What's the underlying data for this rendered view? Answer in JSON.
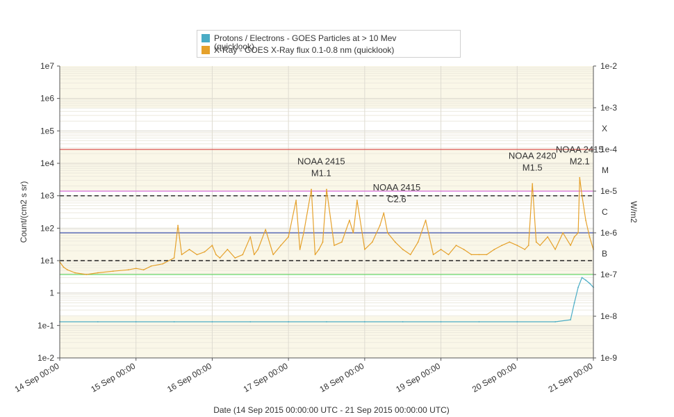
{
  "legend": {
    "items": [
      {
        "label": "Protons / Electrons - GOES Particles at > 10 Mev",
        "label2": "(quicklook)",
        "color": "#4aacc5"
      },
      {
        "label": "X-Ray - GOES X-Ray flux 0.1-0.8 nm (quicklook)",
        "color": "#e5a12b"
      }
    ]
  },
  "chart_data": {
    "type": "line",
    "xlabel": "Date (14 Sep 2015 00:00:00 UTC - 21 Sep 2015 00:00:00 UTC)",
    "ylabel_left": "Count/(cm2 s sr)",
    "ylabel_right": "W/m2",
    "x_ticks": [
      "14 Sep 00:00",
      "15 Sep 00:00",
      "16 Sep 00:00",
      "17 Sep 00:00",
      "18 Sep 00:00",
      "19 Sep 00:00",
      "20 Sep 00:00",
      "21 Sep 00:00"
    ],
    "xlim_days": [
      0,
      7
    ],
    "y_left": {
      "scale": "log",
      "ticks": [
        "1e7",
        "1e6",
        "1e5",
        "1e4",
        "1e3",
        "1e2",
        "1e1",
        "1",
        "1e-1",
        "1e-2"
      ],
      "lim": [
        0.01,
        10000000
      ]
    },
    "y_right": {
      "scale": "log",
      "ticks": [
        "1e-2",
        "1e-3",
        "1e-4",
        "1e-5",
        "1e-6",
        "1e-7",
        "1e-8",
        "1e-9"
      ],
      "lim": [
        1e-09,
        0.01
      ]
    },
    "flare_classes": [
      {
        "label": "X",
        "value": 0.0001
      },
      {
        "label": "M",
        "value": 1e-05
      },
      {
        "label": "C",
        "value": 1e-06
      },
      {
        "label": "B",
        "value": 1e-07
      }
    ],
    "threshold_lines": [
      {
        "axis": "right",
        "value": 0.0001,
        "color": "#d9534f",
        "style": "solid"
      },
      {
        "axis": "right",
        "value": 1e-05,
        "color": "#d36bd6",
        "style": "solid"
      },
      {
        "axis": "right",
        "value": 1e-06,
        "color": "#3c4fa8",
        "style": "solid"
      },
      {
        "axis": "right",
        "value": 1e-07,
        "color": "#6ad66a",
        "style": "solid"
      },
      {
        "axis": "left",
        "value": 1000,
        "color": "#222222",
        "style": "dashed"
      },
      {
        "axis": "left",
        "value": 10,
        "color": "#222222",
        "style": "dashed"
      }
    ],
    "annotations": [
      {
        "line1": "NOAA 2415",
        "line2": "M1.1",
        "day": 3.43,
        "value": 1.1e-05
      },
      {
        "line1": "NOAA 2415",
        "line2": "C2.6",
        "day": 4.42,
        "value": 2.6e-06
      },
      {
        "line1": "NOAA 2420",
        "line2": "M1.5",
        "day": 6.2,
        "value": 1.5e-05
      },
      {
        "line1": "NOAA 2415",
        "line2": "M2.1",
        "day": 6.82,
        "value": 2.1e-05
      }
    ],
    "series": [
      {
        "name": "X-Ray - GOES X-Ray flux 0.1-0.8 nm (quicklook)",
        "axis": "right",
        "color": "#e5a12b",
        "days": [
          0.0,
          0.05,
          0.1,
          0.2,
          0.35,
          0.5,
          0.7,
          0.9,
          1.0,
          1.1,
          1.2,
          1.35,
          1.5,
          1.55,
          1.6,
          1.7,
          1.8,
          1.9,
          2.0,
          2.05,
          2.1,
          2.2,
          2.3,
          2.4,
          2.5,
          2.55,
          2.6,
          2.7,
          2.8,
          2.9,
          3.0,
          3.1,
          3.15,
          3.2,
          3.3,
          3.35,
          3.4,
          3.45,
          3.5,
          3.6,
          3.7,
          3.8,
          3.85,
          3.9,
          4.0,
          4.1,
          4.2,
          4.25,
          4.3,
          4.4,
          4.5,
          4.6,
          4.7,
          4.8,
          4.9,
          5.0,
          5.1,
          5.2,
          5.3,
          5.4,
          5.5,
          5.6,
          5.7,
          5.8,
          5.9,
          6.0,
          6.1,
          6.15,
          6.2,
          6.25,
          6.3,
          6.4,
          6.5,
          6.6,
          6.7,
          6.75,
          6.8,
          6.82,
          6.85,
          6.9,
          6.95,
          7.0
        ],
        "values": [
          2e-07,
          1.5e-07,
          1.3e-07,
          1.1e-07,
          1e-07,
          1.1e-07,
          1.2e-07,
          1.3e-07,
          1.4e-07,
          1.3e-07,
          1.6e-07,
          1.8e-07,
          2.5e-07,
          1.5e-06,
          3e-07,
          4e-07,
          3e-07,
          3.5e-07,
          5e-07,
          3e-07,
          2.5e-07,
          4e-07,
          2.5e-07,
          3e-07,
          8e-07,
          3e-07,
          4e-07,
          1.2e-06,
          3e-07,
          5e-07,
          8e-07,
          6e-06,
          4e-07,
          1e-06,
          1.1e-05,
          3e-07,
          4e-07,
          6e-07,
          1.1e-05,
          5e-07,
          6e-07,
          2e-06,
          1e-06,
          6e-06,
          4e-07,
          6e-07,
          1.5e-06,
          3e-06,
          1e-06,
          6e-07,
          4e-07,
          3e-07,
          6e-07,
          2e-06,
          3e-07,
          4e-07,
          3e-07,
          5e-07,
          4e-07,
          3e-07,
          3e-07,
          3e-07,
          4e-07,
          5e-07,
          6e-07,
          5e-07,
          4e-07,
          5e-07,
          1.5e-05,
          6e-07,
          5e-07,
          8e-07,
          4e-07,
          1e-06,
          5e-07,
          8e-07,
          1e-06,
          2.1e-05,
          8e-06,
          2e-06,
          8e-07,
          4e-07
        ]
      },
      {
        "name": "Protons / Electrons - GOES Particles at > 10 Mev",
        "axis": "left",
        "color": "#4aacc5",
        "days": [
          0.0,
          0.5,
          1.0,
          1.5,
          2.0,
          2.5,
          3.0,
          3.5,
          4.0,
          4.5,
          5.0,
          5.5,
          6.0,
          6.5,
          6.7,
          6.75,
          6.8,
          6.85,
          6.9,
          6.95,
          7.0
        ],
        "values": [
          0.13,
          0.13,
          0.13,
          0.13,
          0.13,
          0.13,
          0.13,
          0.13,
          0.13,
          0.13,
          0.13,
          0.13,
          0.13,
          0.13,
          0.15,
          0.5,
          1.5,
          3.0,
          2.5,
          2.0,
          1.5
        ]
      }
    ]
  }
}
